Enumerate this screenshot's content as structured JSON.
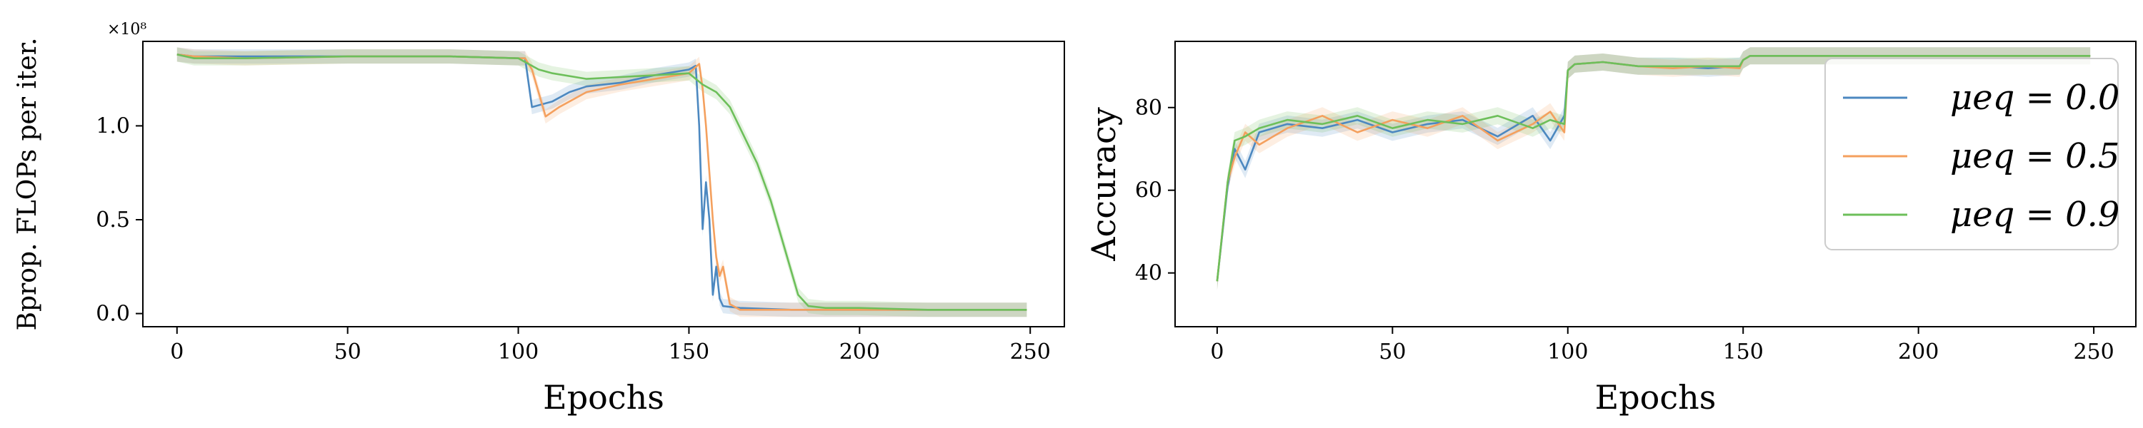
{
  "chart_data": [
    {
      "type": "line",
      "title": "",
      "xlabel": "Epochs",
      "ylabel": "Bprop. FLOPs per iter.",
      "y_multiplier_label": "×10⁸",
      "xlim": [
        -10,
        260
      ],
      "ylim": [
        -0.07,
        1.45
      ],
      "xticks": [
        0,
        50,
        100,
        150,
        200,
        250
      ],
      "xtick_labels": [
        "0",
        "50",
        "100",
        "150",
        "200",
        "250"
      ],
      "yticks": [
        0.0,
        0.5,
        1.0
      ],
      "ytick_labels": [
        "0.0",
        "0.5",
        "1.0"
      ],
      "grid": false,
      "series": [
        {
          "name": "μeq = 0.0",
          "color": "#4c88c0",
          "x": [
            0,
            5,
            20,
            50,
            80,
            100,
            102,
            104,
            110,
            115,
            120,
            130,
            140,
            150,
            152,
            153,
            154,
            155,
            156,
            157,
            158,
            159,
            160,
            165,
            180,
            200,
            220,
            240,
            249
          ],
          "y": [
            1.38,
            1.37,
            1.37,
            1.37,
            1.37,
            1.36,
            1.36,
            1.1,
            1.13,
            1.18,
            1.21,
            1.23,
            1.27,
            1.3,
            1.32,
            1.0,
            0.45,
            0.7,
            0.5,
            0.1,
            0.25,
            0.08,
            0.04,
            0.03,
            0.02,
            0.02,
            0.02,
            0.02,
            0.02
          ]
        },
        {
          "name": "μeq = 0.5",
          "color": "#f4a05e",
          "x": [
            0,
            5,
            20,
            50,
            80,
            100,
            102,
            104,
            108,
            112,
            120,
            130,
            140,
            150,
            153,
            154,
            155,
            156,
            157,
            158,
            159,
            160,
            162,
            165,
            180,
            200,
            220,
            240,
            249
          ],
          "y": [
            1.38,
            1.37,
            1.36,
            1.37,
            1.37,
            1.36,
            1.36,
            1.3,
            1.05,
            1.1,
            1.18,
            1.22,
            1.25,
            1.28,
            1.33,
            1.2,
            1.0,
            0.75,
            0.5,
            0.3,
            0.2,
            0.25,
            0.05,
            0.02,
            0.02,
            0.02,
            0.02,
            0.02,
            0.02
          ]
        },
        {
          "name": "μeq = 0.9",
          "color": "#6dbf5a",
          "x": [
            0,
            5,
            20,
            50,
            80,
            100,
            103,
            106,
            110,
            120,
            130,
            140,
            150,
            154,
            158,
            162,
            166,
            170,
            174,
            178,
            182,
            185,
            190,
            200,
            220,
            240,
            249
          ],
          "y": [
            1.38,
            1.36,
            1.36,
            1.37,
            1.37,
            1.36,
            1.33,
            1.3,
            1.28,
            1.25,
            1.26,
            1.27,
            1.28,
            1.22,
            1.18,
            1.1,
            0.95,
            0.8,
            0.6,
            0.35,
            0.1,
            0.04,
            0.03,
            0.03,
            0.02,
            0.02,
            0.02
          ]
        }
      ]
    },
    {
      "type": "line",
      "title": "",
      "xlabel": "Epochs",
      "ylabel": "Accuracy",
      "xlim": [
        -12,
        262
      ],
      "ylim": [
        27,
        96
      ],
      "xticks": [
        0,
        50,
        100,
        150,
        200,
        250
      ],
      "xtick_labels": [
        "0",
        "50",
        "100",
        "150",
        "200",
        "250"
      ],
      "yticks": [
        40,
        60,
        80
      ],
      "ytick_labels": [
        "40",
        "60",
        "80"
      ],
      "grid": false,
      "legend_position": "upper right",
      "series": [
        {
          "name": "μeq = 0.0",
          "color": "#4c88c0",
          "x": [
            0,
            3,
            5,
            8,
            12,
            20,
            30,
            40,
            50,
            60,
            70,
            80,
            90,
            95,
            99,
            100,
            102,
            110,
            120,
            130,
            140,
            149,
            150,
            152,
            160,
            200,
            249
          ],
          "y": [
            38,
            61,
            70,
            65,
            74,
            76,
            75,
            77,
            74,
            76,
            77,
            73,
            78,
            72,
            78,
            89,
            90.5,
            91,
            90,
            90,
            89.5,
            90,
            91.5,
            92.5,
            92.5,
            92.5,
            92.5
          ]
        },
        {
          "name": "μeq = 0.5",
          "color": "#f4a05e",
          "x": [
            0,
            3,
            5,
            8,
            12,
            20,
            30,
            40,
            50,
            60,
            70,
            80,
            90,
            95,
            99,
            100,
            102,
            110,
            120,
            130,
            140,
            149,
            150,
            152,
            160,
            200,
            249
          ],
          "y": [
            38,
            62,
            68,
            74,
            71,
            75,
            78,
            74,
            77,
            75,
            78,
            72,
            76,
            79,
            74,
            89,
            90.5,
            91,
            90,
            89.5,
            90,
            89.5,
            91.5,
            92.5,
            92.5,
            92.5,
            92.5
          ]
        },
        {
          "name": "μeq = 0.9",
          "color": "#6dbf5a",
          "x": [
            0,
            3,
            5,
            8,
            12,
            20,
            30,
            40,
            50,
            60,
            70,
            80,
            90,
            95,
            99,
            100,
            102,
            110,
            120,
            130,
            140,
            149,
            150,
            152,
            160,
            200,
            249
          ],
          "y": [
            38,
            62,
            72,
            73,
            75,
            77,
            76,
            78,
            75,
            77,
            76,
            78,
            75,
            77,
            76,
            89,
            90.5,
            91,
            90,
            90,
            90,
            90,
            91.5,
            92.5,
            92.5,
            92.5,
            92.5
          ]
        }
      ]
    }
  ]
}
